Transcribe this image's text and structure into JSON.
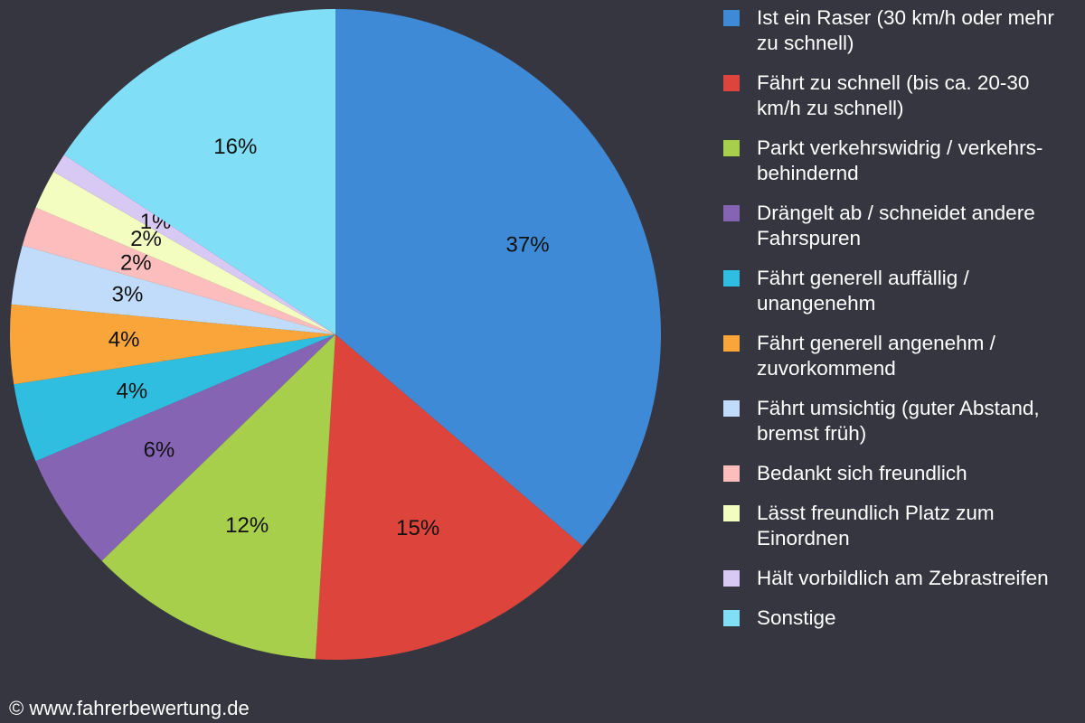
{
  "chart_data": {
    "type": "pie",
    "categories": [
      "Ist ein Raser (30 km/h oder mehr zu schnell)",
      "Fährt zu schnell (bis ca. 20-30 km/h zu schnell)",
      "Parkt verkehrswidrig / verkehrs-behindernd",
      "Drängelt ab / schneidet andere Fahrspuren",
      "Fährt generell auffällig / unangenehm",
      "Fährt generell angenehm / zuvorkommend",
      "Fährt umsichtig (guter Abstand, bremst früh)",
      "Bedankt sich freundlich",
      "Lässt freundlich Platz zum Einordnen",
      "Hält vorbildlich am Zebrastreifen",
      "Sonstige"
    ],
    "values": [
      37,
      15,
      12,
      6,
      4,
      4,
      3,
      2,
      2,
      1,
      16
    ],
    "value_labels": [
      "37%",
      "15%",
      "12%",
      "6%",
      "4%",
      "4%",
      "3%",
      "2%",
      "2%",
      "1%",
      "16%"
    ],
    "colors": [
      "#3e8ad6",
      "#dc443c",
      "#a7cf4c",
      "#8664b4",
      "#2fbde0",
      "#f9a53a",
      "#c1dcfb",
      "#fdbdbd",
      "#f3fdc0",
      "#d7c8f4",
      "#80def6"
    ],
    "legend": "right"
  },
  "copyright": "© www.fahrerbewertung.de"
}
